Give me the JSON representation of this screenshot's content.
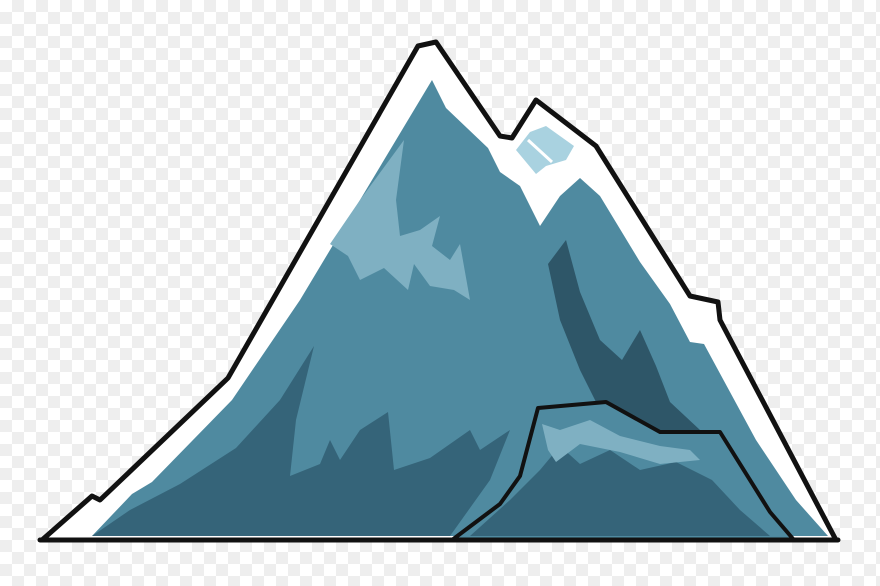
{
  "scene": {
    "subject": "snow-capped-mountain",
    "colors": {
      "outline": "#111111",
      "snow": "#ffffff",
      "rock_mid": "#4f8aa0",
      "rock_dark": "#356479",
      "rock_shadow": "#2e5668",
      "rock_highlight": "#7fb0c2",
      "ice_light": "#a9d2e0",
      "checker": "#eeeeee"
    }
  }
}
